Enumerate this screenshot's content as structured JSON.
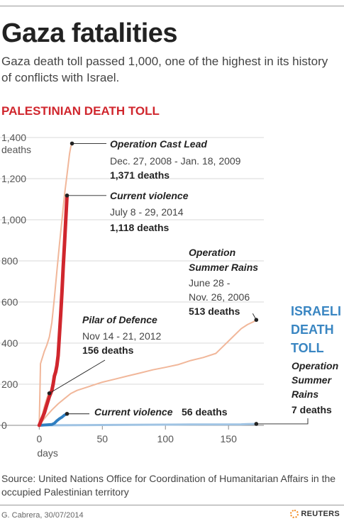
{
  "header": {
    "title": "Gaza fatalities",
    "subtitle": "Gaza death toll passed 1,000, one of the highest in its history of conflicts with Israel."
  },
  "palestinian_heading": "PALESTINIAN DEATH TOLL",
  "israeli_heading": "ISRAELI DEATH TOLL",
  "source": "Source: United Nations Office for Coordination of Humanitarian Affairs in the occupied Palestinian territory",
  "credit": "G. Cabrera, 30/07/2014",
  "brand": "REUTERS",
  "colors": {
    "current_violence_palestinian": "#d0262d",
    "past_operations_palestinian": "#f1b79a",
    "current_violence_israeli": "#2f7fc1",
    "past_operations_israeli": "#9fc3e3",
    "heading_red": "#d0262d",
    "heading_blue": "#3a86c2"
  },
  "chart_data": {
    "type": "line",
    "xlabel": "days",
    "ylabel": "deaths",
    "xlim": [
      -3,
      178
    ],
    "ylim": [
      0,
      1400
    ],
    "x_ticks": [
      0,
      50,
      100,
      150
    ],
    "y_ticks": [
      0,
      200,
      400,
      600,
      800,
      1000,
      1200,
      1400
    ],
    "y_tick_labels": [
      "0",
      "200",
      "400",
      "600",
      "800",
      "1,000",
      "1,200",
      "1,400"
    ],
    "grid": "horizontal",
    "series": [
      {
        "name": "Operation Cast Lead",
        "dates": "Dec. 27, 2008 - Jan. 18, 2009",
        "total": "1,371 deaths",
        "group": "palestinian",
        "x": [
          0,
          1,
          2,
          3,
          4,
          6,
          8,
          10,
          12,
          14,
          16,
          18,
          20,
          22,
          24,
          25,
          26
        ],
        "y": [
          0,
          300,
          320,
          340,
          360,
          390,
          430,
          500,
          620,
          750,
          880,
          1000,
          1120,
          1220,
          1320,
          1355,
          1371
        ]
      },
      {
        "name": "Current violence",
        "dates": "July 8 - 29, 2014",
        "total": "1,118 deaths",
        "group": "palestinian",
        "x": [
          0,
          2,
          4,
          6,
          8,
          10,
          11,
          12,
          13,
          14,
          15,
          16,
          17,
          18,
          19,
          20,
          21,
          22
        ],
        "y": [
          0,
          30,
          60,
          100,
          140,
          170,
          200,
          240,
          260,
          290,
          340,
          440,
          540,
          650,
          770,
          880,
          1000,
          1118
        ]
      },
      {
        "name": "Operation Summer Rains",
        "dates": "June 28 - Nov. 26, 2006",
        "total": "513 deaths",
        "group": "palestinian",
        "x": [
          0,
          5,
          10,
          15,
          20,
          25,
          30,
          40,
          50,
          60,
          70,
          80,
          90,
          100,
          110,
          120,
          130,
          140,
          145,
          150,
          155,
          160,
          165,
          170,
          172
        ],
        "y": [
          0,
          40,
          75,
          105,
          130,
          155,
          170,
          190,
          210,
          225,
          240,
          255,
          270,
          282,
          295,
          315,
          330,
          350,
          380,
          410,
          440,
          470,
          490,
          505,
          513
        ]
      },
      {
        "name": "Pilar of Defence",
        "dates": "Nov 14 - 21, 2012",
        "total": "156 deaths",
        "group": "palestinian",
        "x": [
          0,
          1,
          2,
          3,
          4,
          5,
          6,
          7,
          8
        ],
        "y": [
          0,
          20,
          40,
          65,
          90,
          110,
          130,
          148,
          156
        ]
      },
      {
        "name": "Current violence",
        "total": "56 deaths",
        "group": "israeli",
        "x": [
          0,
          5,
          10,
          12,
          14,
          16,
          18,
          20,
          22
        ],
        "y": [
          0,
          2,
          4,
          10,
          22,
          32,
          40,
          50,
          56
        ]
      },
      {
        "name": "Operation Summer Rains",
        "total": "7 deaths",
        "group": "israeli",
        "x": [
          0,
          60,
          120,
          160,
          165,
          172
        ],
        "y": [
          0,
          2,
          4,
          5,
          6,
          7
        ]
      }
    ],
    "annotations": [
      {
        "title": "Operation Cast Lead",
        "dates": "Dec. 27, 2008 - Jan. 18, 2009",
        "total": "1,371 deaths"
      },
      {
        "title": "Current violence",
        "dates": "July 8 - 29, 2014",
        "total": "1,118 deaths"
      },
      {
        "title": "Operation Summer Rains",
        "dates": "June 28 - Nov. 26, 2006",
        "total": "513 deaths"
      },
      {
        "title": "Pilar of Defence",
        "dates": "Nov 14 - 21, 2012",
        "total": "156 deaths"
      },
      {
        "title": "Current violence",
        "total": "56 deaths"
      },
      {
        "title": "Operation Summer Rains",
        "total": "7 deaths"
      }
    ]
  }
}
